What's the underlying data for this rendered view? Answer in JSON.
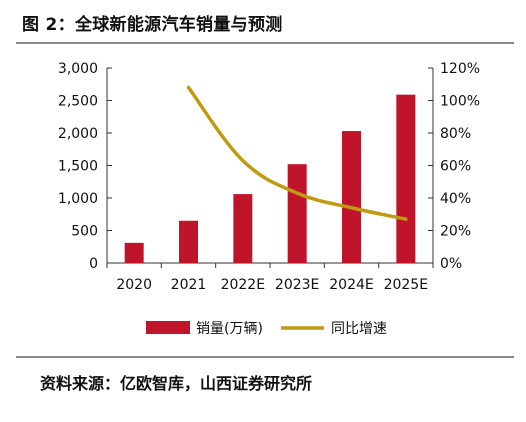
{
  "header": {
    "title": "图 2：全球新能源汽车销量与预测"
  },
  "footer": {
    "source": "资料来源：亿欧智库，山西证券研究所"
  },
  "colors": {
    "bar": "#c0142b",
    "line": "#c09a10",
    "axis": "#333333",
    "text": "#111111"
  },
  "chart_data": {
    "type": "bar+line",
    "categories": [
      "2020",
      "2021",
      "2022E",
      "2023E",
      "2024E",
      "2025E"
    ],
    "series": [
      {
        "name": "销量(万辆)",
        "type": "bar",
        "axis": "left",
        "values": [
          310,
          650,
          1060,
          1520,
          2030,
          2590
        ]
      },
      {
        "name": "同比增速",
        "type": "line",
        "axis": "right",
        "values": [
          null,
          108,
          63,
          43,
          34,
          27
        ]
      }
    ],
    "y_left": {
      "min": 0,
      "max": 3000,
      "ticks": [
        "0",
        "500",
        "1,000",
        "1,500",
        "2,000",
        "2,500",
        "3,000"
      ]
    },
    "y_right": {
      "min": 0,
      "max": 120,
      "ticks": [
        "0%",
        "20%",
        "40%",
        "60%",
        "80%",
        "100%",
        "120%"
      ]
    },
    "grid": false,
    "legend_position": "bottom"
  }
}
